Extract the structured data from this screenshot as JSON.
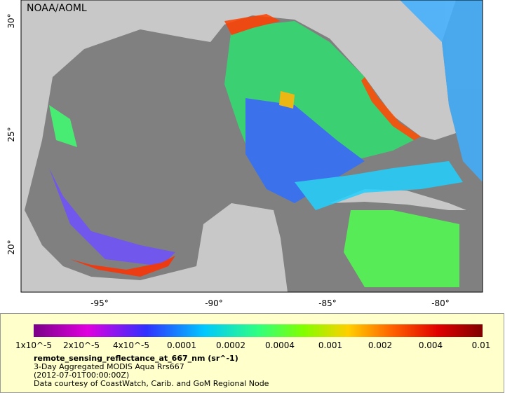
{
  "map": {
    "credit": "NOAA/AOML",
    "latitude_labels": [
      "30°",
      "25°",
      "20°"
    ],
    "longitude_labels": [
      "-95°",
      "-90°",
      "-85°",
      "-80°"
    ]
  },
  "colorbar": {
    "labels": [
      "1x10^-5",
      "2x10^-5",
      "4x10^-5",
      "0.0001",
      "0.0002",
      "0.0004",
      "0.001",
      "0.002",
      "0.004",
      "0.01"
    ]
  },
  "caption": {
    "variable": "remote_sensing_reflectance_at_667_nm (sr^-1)",
    "lines": [
      "3-Day Aggregated MODIS Aqua Rrs667",
      "(2012-07-01T00:00:00Z)",
      "Data courtesy of CoastWatch, Carib. and GoM Regional Node"
    ]
  }
}
